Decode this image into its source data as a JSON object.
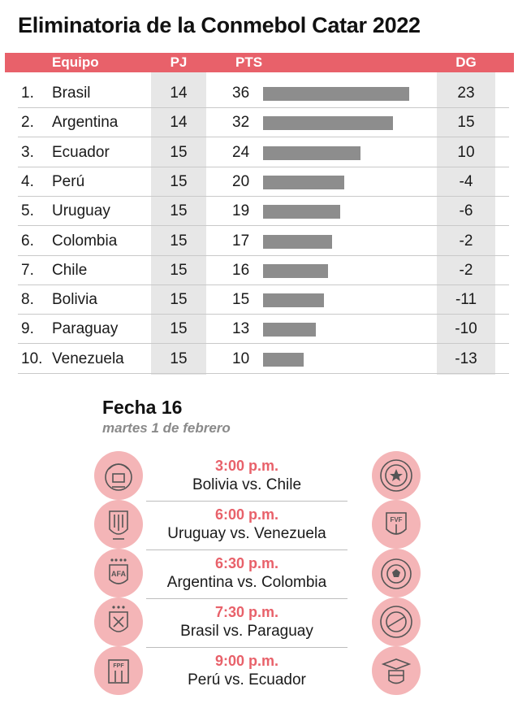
{
  "title": "Eliminatoria de la Conmebol Catar 2022",
  "table": {
    "headers": {
      "team": "Equipo",
      "pj": "PJ",
      "pts": "PTS",
      "dg": "DG"
    }
  },
  "chart_data": {
    "type": "table",
    "title": "Eliminatoria de la Conmebol Catar 2022",
    "columns": [
      "Equipo",
      "PJ",
      "PTS",
      "DG"
    ],
    "bar_column": "PTS",
    "bar_max": 40,
    "rows": [
      {
        "rank": "1.",
        "team": "Brasil",
        "pj": "14",
        "pts": "36",
        "dg": "23",
        "points": 36
      },
      {
        "rank": "2.",
        "team": "Argentina",
        "pj": "14",
        "pts": "32",
        "dg": "15",
        "points": 32
      },
      {
        "rank": "3.",
        "team": "Ecuador",
        "pj": "15",
        "pts": "24",
        "dg": "10",
        "points": 24
      },
      {
        "rank": "4.",
        "team": "Perú",
        "pj": "15",
        "pts": "20",
        "dg": "-4",
        "points": 20
      },
      {
        "rank": "5.",
        "team": "Uruguay",
        "pj": "15",
        "pts": "19",
        "dg": "-6",
        "points": 19
      },
      {
        "rank": "6.",
        "team": "Colombia",
        "pj": "15",
        "pts": "17",
        "dg": "-2",
        "points": 17
      },
      {
        "rank": "7.",
        "team": "Chile",
        "pj": "15",
        "pts": "16",
        "dg": "-2",
        "points": 16
      },
      {
        "rank": "8.",
        "team": "Bolivia",
        "pj": "15",
        "pts": "15",
        "dg": "-11",
        "points": 15
      },
      {
        "rank": "9.",
        "team": "Paraguay",
        "pj": "15",
        "pts": "13",
        "dg": "-10",
        "points": 13
      },
      {
        "rank": "10.",
        "team": "Venezuela",
        "pj": "15",
        "pts": "10",
        "dg": "-13",
        "points": 10
      }
    ]
  },
  "fecha": {
    "title": "Fecha 16",
    "date": "martes 1 de febrero",
    "matches": [
      {
        "time": "3:00 p.m.",
        "teams": "Bolivia vs. Chile",
        "home_crest": "bolivia-crest-icon",
        "away_crest": "chile-crest-icon"
      },
      {
        "time": "6:00 p.m.",
        "teams": "Uruguay vs. Venezuela",
        "home_crest": "uruguay-crest-icon",
        "away_crest": "venezuela-crest-icon"
      },
      {
        "time": "6:30 p.m.",
        "teams": "Argentina vs. Colombia",
        "home_crest": "argentina-crest-icon",
        "away_crest": "colombia-crest-icon"
      },
      {
        "time": "7:30 p.m.",
        "teams": "Brasil vs. Paraguay",
        "home_crest": "brasil-crest-icon",
        "away_crest": "paraguay-crest-icon"
      },
      {
        "time": "9:00 p.m.",
        "teams": "Perú vs. Ecuador",
        "home_crest": "peru-crest-icon",
        "away_crest": "ecuador-crest-icon"
      }
    ]
  },
  "colors": {
    "accent": "#e8616a",
    "bar": "#8d8d8d",
    "stripe": "#e7e7e7",
    "crest_bg": "#f4b5b7"
  }
}
